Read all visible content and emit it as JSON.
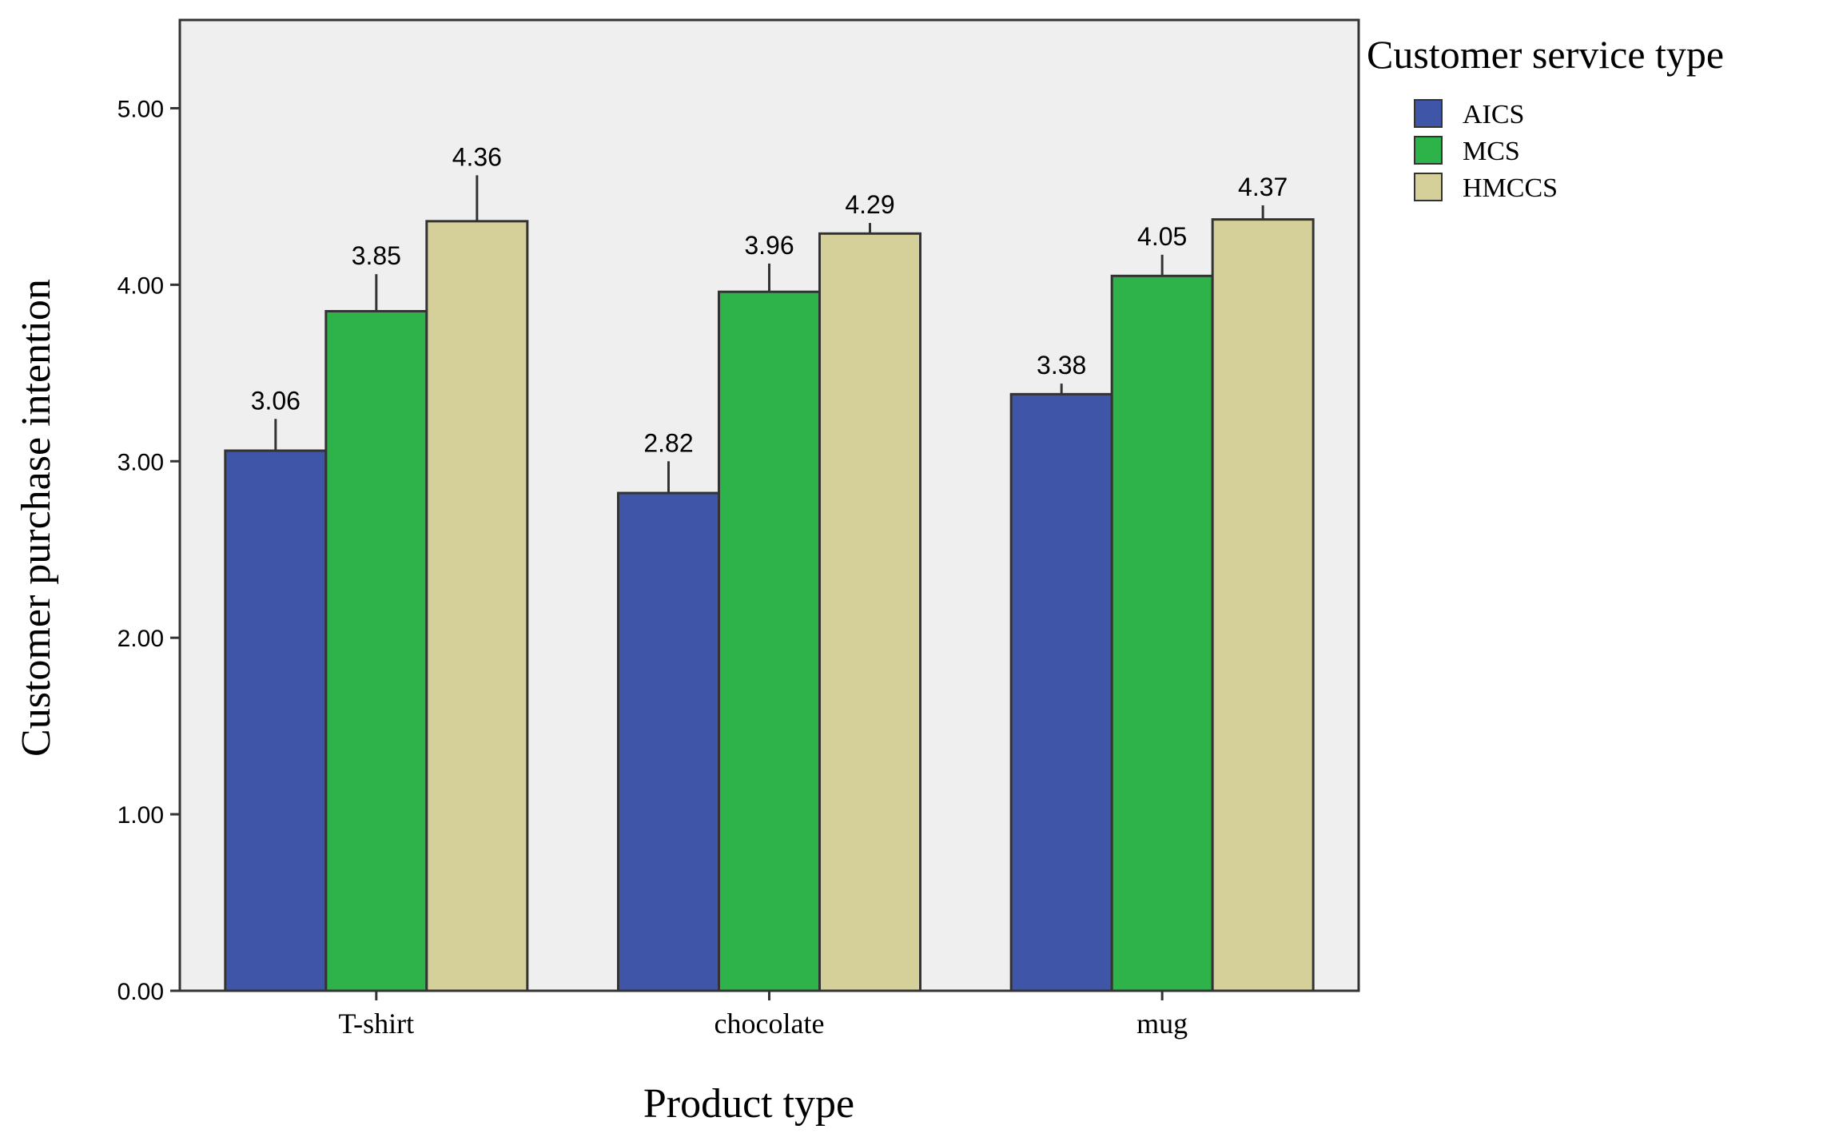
{
  "chart_data": {
    "type": "bar",
    "categories": [
      "T-shirt",
      "chocolate",
      "mug"
    ],
    "series": [
      {
        "name": "AICS",
        "values": [
          3.06,
          2.82,
          3.38
        ],
        "error_upper": [
          3.24,
          3.0,
          3.44
        ],
        "color": "#3f56a8"
      },
      {
        "name": "MCS",
        "values": [
          3.85,
          3.96,
          4.05
        ],
        "error_upper": [
          4.06,
          4.12,
          4.17
        ],
        "color": "#2db34a"
      },
      {
        "name": "HMCCS",
        "values": [
          4.36,
          4.29,
          4.37
        ],
        "error_upper": [
          4.62,
          4.35,
          4.45
        ],
        "color": "#d5cf9a"
      }
    ],
    "value_labels": [
      [
        "3.06",
        "2.82",
        "3.38"
      ],
      [
        "3.85",
        "3.96",
        "4.05"
      ],
      [
        "4.36",
        "4.29",
        "4.37"
      ]
    ],
    "xlabel": "Product type",
    "ylabel": "Customer purchase intention",
    "ylim": [
      0,
      5.5
    ],
    "yticks": [
      "0.00",
      "1.00",
      "2.00",
      "3.00",
      "4.00",
      "5.00"
    ],
    "legend_title": "Customer service type",
    "legend_position": "top-right",
    "plot_background": "#efefef",
    "grid": false
  }
}
